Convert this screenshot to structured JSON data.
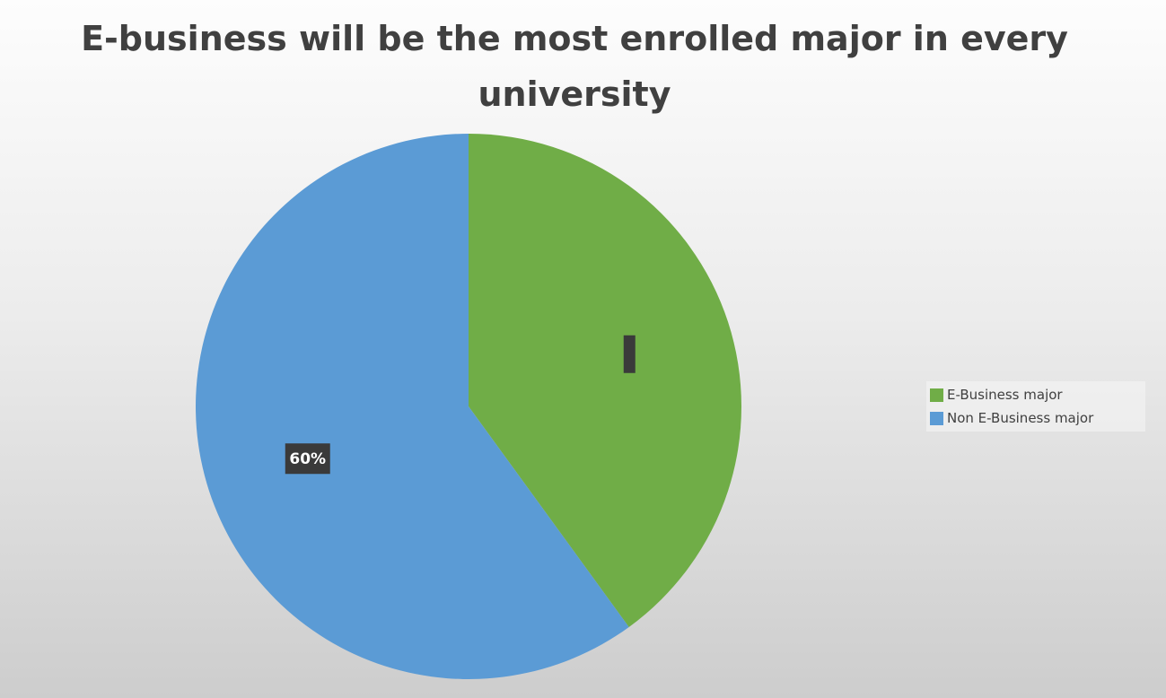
{
  "chart_data": {
    "type": "pie",
    "title": "E-business will be the most enrolled major in every university",
    "categories": [
      "E-Business major",
      "Non E-Business major"
    ],
    "values": [
      40,
      60
    ],
    "value_unit": "%",
    "data_labels": [
      "",
      "60%"
    ],
    "colors": [
      "#70ad47",
      "#5b9bd5"
    ],
    "legend_position": "right"
  }
}
